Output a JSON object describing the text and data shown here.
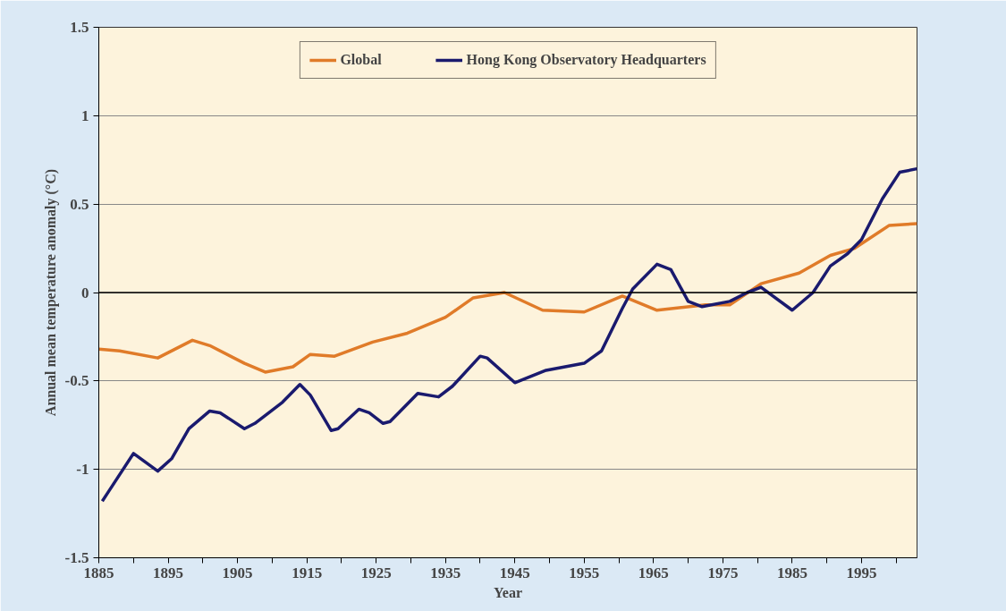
{
  "chart_data": {
    "type": "line",
    "xlabel": "Year",
    "ylabel": "Annual mean temperature anomaly (°C)",
    "xlim": [
      1885,
      2003
    ],
    "ylim": [
      -1.5,
      1.5
    ],
    "xticks": [
      1885,
      {
        "value": 1890,
        "label": null
      },
      1895,
      {
        "value": 1900,
        "label": null
      },
      1905,
      {
        "value": 1910,
        "label": null
      },
      1915,
      {
        "value": 1920,
        "label": null
      },
      1925,
      {
        "value": 1930,
        "label": null
      },
      1935,
      {
        "value": 1940,
        "label": null
      },
      1945,
      {
        "value": 1950,
        "label": null
      },
      1955,
      {
        "value": 1960,
        "label": null
      },
      1965,
      {
        "value": 1970,
        "label": null
      },
      1975,
      {
        "value": 1980,
        "label": null
      },
      1985,
      {
        "value": 1990,
        "label": null
      },
      1995,
      {
        "value": 2000,
        "label": null
      }
    ],
    "yticks": [
      -1.5,
      -1,
      -0.5,
      0,
      0.5,
      1,
      1.5
    ],
    "grid": "y",
    "legend": "top",
    "marker": "none",
    "line_style": "solid",
    "ref_lines": [
      {
        "axis": "y",
        "value": 0,
        "label": null,
        "color": "#000000"
      }
    ],
    "series": [
      {
        "name": "Global",
        "color": "#e07b29",
        "x": [
          1885,
          1888,
          1893.5,
          1898.5,
          1901,
          1906,
          1909,
          1913,
          1915.5,
          1919,
          1924.5,
          1929.5,
          1935,
          1939,
          1943.5,
          1949,
          1955,
          1960.5,
          1965.5,
          1972.5,
          1976,
          1980.5,
          1986,
          1990.5,
          1994,
          1999,
          2003
        ],
        "values": [
          -0.32,
          -0.33,
          -0.37,
          -0.27,
          -0.3,
          -0.4,
          -0.45,
          -0.42,
          -0.35,
          -0.36,
          -0.28,
          -0.23,
          -0.14,
          -0.03,
          0.0,
          -0.1,
          -0.11,
          -0.02,
          -0.1,
          -0.07,
          -0.07,
          0.05,
          0.11,
          0.21,
          0.25,
          0.38,
          0.39
        ]
      },
      {
        "name": "Hong Kong Observatory Headquarters",
        "color": "#1a1a6e",
        "x": [
          1885.5,
          1886.5,
          1890,
          1893.5,
          1895.5,
          1898,
          1901,
          1902.5,
          1906,
          1907.5,
          1911.5,
          1914,
          1915.5,
          1918.5,
          1919.5,
          1922.5,
          1924,
          1926,
          1927,
          1931,
          1934,
          1936,
          1940,
          1941,
          1945,
          1949.5,
          1955,
          1957.5,
          1960.5,
          1962,
          1965.5,
          1967.5,
          1970,
          1972,
          1976,
          1978.5,
          1980.5,
          1985,
          1988,
          1990.5,
          1993,
          1995,
          1998,
          2000.5,
          2003
        ],
        "values": [
          -1.18,
          -1.12,
          -0.91,
          -1.01,
          -0.94,
          -0.77,
          -0.67,
          -0.68,
          -0.77,
          -0.74,
          -0.62,
          -0.52,
          -0.58,
          -0.78,
          -0.77,
          -0.66,
          -0.68,
          -0.74,
          -0.73,
          -0.57,
          -0.59,
          -0.53,
          -0.36,
          -0.37,
          -0.51,
          -0.44,
          -0.4,
          -0.33,
          -0.09,
          0.02,
          0.16,
          0.13,
          -0.05,
          -0.08,
          -0.05,
          0.0,
          0.03,
          -0.1,
          0.0,
          0.15,
          0.22,
          0.3,
          0.53,
          0.68,
          0.7
        ]
      }
    ]
  }
}
